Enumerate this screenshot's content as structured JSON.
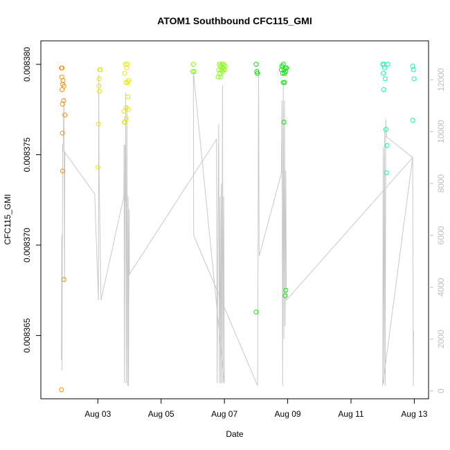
{
  "chart_data": {
    "type": "scatter",
    "title": "ATOM1 Southbound CFC115_GMI",
    "xlabel": "Date",
    "ylabel": "CFC115_GMI",
    "x_ticks": [
      "Aug 03",
      "Aug 05",
      "Aug 07",
      "Aug 09",
      "Aug 11",
      "Aug 13"
    ],
    "x_tick_days": [
      3,
      5,
      7,
      9,
      11,
      13
    ],
    "xlim_days": [
      1.2,
      13.45
    ],
    "y_left": {
      "ticks": [
        "0.008365",
        "0.008370",
        "0.008375",
        "0.008380"
      ],
      "tick_values": [
        0.008365,
        0.00837,
        0.008375,
        0.00838
      ],
      "lim": [
        0.0083615,
        0.0083813
      ]
    },
    "y_right": {
      "ticks": [
        "0",
        "2000",
        "4000",
        "6000",
        "8000",
        "10000",
        "12000"
      ],
      "tick_values": [
        0,
        2000,
        4000,
        6000,
        8000,
        10000,
        12000
      ],
      "lim": [
        -300,
        13500
      ]
    },
    "grid": false,
    "point_colors": [
      "#ff8c00",
      "#e6e600",
      "#80ff00",
      "#00e600",
      "#00ffb0"
    ],
    "line_color": "#c8c8c8",
    "line_series": [
      {
        "x": 1.85,
        "y": 1200
      },
      {
        "x": 1.86,
        "y": 6000
      },
      {
        "x": 1.87,
        "y": 800
      },
      {
        "x": 1.89,
        "y": 9500
      },
      {
        "x": 1.9,
        "y": 9200
      },
      {
        "x": 1.93,
        "y": 11300
      },
      {
        "x": 1.94,
        "y": 7500
      },
      {
        "x": 1.95,
        "y": 4200
      },
      {
        "x": 1.96,
        "y": 9200
      },
      {
        "x": 2.9,
        "y": 7600
      },
      {
        "x": 3.02,
        "y": 3500
      },
      {
        "x": 3.03,
        "y": 12200
      },
      {
        "x": 3.04,
        "y": 8500
      },
      {
        "x": 3.1,
        "y": 3500
      },
      {
        "x": 3.82,
        "y": 7500
      },
      {
        "x": 3.83,
        "y": 9500
      },
      {
        "x": 3.84,
        "y": 300
      },
      {
        "x": 3.86,
        "y": 9500
      },
      {
        "x": 3.87,
        "y": 7300
      },
      {
        "x": 3.88,
        "y": 11500
      },
      {
        "x": 3.9,
        "y": 300
      },
      {
        "x": 3.92,
        "y": 11000
      },
      {
        "x": 3.94,
        "y": 200
      },
      {
        "x": 3.96,
        "y": 7500
      },
      {
        "x": 3.97,
        "y": 200
      },
      {
        "x": 3.99,
        "y": 7000
      },
      {
        "x": 4.0,
        "y": 4500
      },
      {
        "x": 6.75,
        "y": 9700
      },
      {
        "x": 6.77,
        "y": 300
      },
      {
        "x": 6.8,
        "y": 7000
      },
      {
        "x": 6.82,
        "y": 10300
      },
      {
        "x": 6.84,
        "y": 300
      },
      {
        "x": 6.86,
        "y": 7500
      },
      {
        "x": 6.88,
        "y": 300
      },
      {
        "x": 6.9,
        "y": 8000
      },
      {
        "x": 6.92,
        "y": 300
      },
      {
        "x": 6.94,
        "y": 11800
      },
      {
        "x": 6.96,
        "y": 300
      },
      {
        "x": 6.98,
        "y": 7500
      },
      {
        "x": 7.0,
        "y": 300
      },
      {
        "x": 6.02,
        "y": 12300
      },
      {
        "x": 6.03,
        "y": 6000
      },
      {
        "x": 8.05,
        "y": 200
      },
      {
        "x": 8.08,
        "y": 12400
      },
      {
        "x": 8.1,
        "y": 5200
      },
      {
        "x": 8.8,
        "y": 8400
      },
      {
        "x": 8.82,
        "y": 11200
      },
      {
        "x": 8.84,
        "y": 200
      },
      {
        "x": 8.86,
        "y": 11800
      },
      {
        "x": 8.88,
        "y": 2000
      },
      {
        "x": 8.9,
        "y": 11200
      },
      {
        "x": 8.92,
        "y": 2500
      },
      {
        "x": 8.94,
        "y": 8500
      },
      {
        "x": 8.96,
        "y": 3500
      },
      {
        "x": 12.95,
        "y": 9000
      },
      {
        "x": 12.0,
        "y": 200
      },
      {
        "x": 12.02,
        "y": 9400
      },
      {
        "x": 12.04,
        "y": 300
      },
      {
        "x": 12.06,
        "y": 10000
      },
      {
        "x": 12.08,
        "y": 200
      },
      {
        "x": 12.1,
        "y": 10500
      },
      {
        "x": 12.12,
        "y": 9800
      },
      {
        "x": 12.95,
        "y": 9000
      },
      {
        "x": 12.97,
        "y": 200
      },
      {
        "x": 12.98,
        "y": 2300
      }
    ],
    "points": [
      {
        "x": 1.85,
        "y": 0.008362,
        "c": 0
      },
      {
        "x": 1.86,
        "y": 0.0083793,
        "c": 0
      },
      {
        "x": 1.87,
        "y": 0.0083786,
        "c": 0
      },
      {
        "x": 1.88,
        "y": 0.0083778,
        "c": 0
      },
      {
        "x": 1.9,
        "y": 0.0083791,
        "c": 0
      },
      {
        "x": 1.92,
        "y": 0.008378,
        "c": 0
      },
      {
        "x": 1.85,
        "y": 0.0083798,
        "c": 0
      },
      {
        "x": 1.87,
        "y": 0.0083798,
        "c": 0
      },
      {
        "x": 1.89,
        "y": 0.0083789,
        "c": 0
      },
      {
        "x": 1.93,
        "y": 0.0083788,
        "c": 0
      },
      {
        "x": 1.96,
        "y": 0.0083772,
        "c": 0
      },
      {
        "x": 1.88,
        "y": 0.0083762,
        "c": 0
      },
      {
        "x": 1.89,
        "y": 0.0083741,
        "c": 0
      },
      {
        "x": 1.93,
        "y": 0.0083681,
        "c": 0
      },
      {
        "x": 3.0,
        "y": 0.0083743,
        "c": 1
      },
      {
        "x": 3.02,
        "y": 0.0083767,
        "c": 1
      },
      {
        "x": 3.04,
        "y": 0.0083792,
        "c": 1
      },
      {
        "x": 3.06,
        "y": 0.0083797,
        "c": 1
      },
      {
        "x": 3.05,
        "y": 0.0083785,
        "c": 1
      },
      {
        "x": 3.08,
        "y": 0.0083797,
        "c": 1
      },
      {
        "x": 3.03,
        "y": 0.0083788,
        "c": 1
      },
      {
        "x": 3.82,
        "y": 0.0083774,
        "c": 1
      },
      {
        "x": 3.84,
        "y": 0.0083768,
        "c": 1
      },
      {
        "x": 3.85,
        "y": 0.0083795,
        "c": 1
      },
      {
        "x": 3.87,
        "y": 0.00838,
        "c": 1
      },
      {
        "x": 3.89,
        "y": 0.008379,
        "c": 1
      },
      {
        "x": 3.9,
        "y": 0.0083776,
        "c": 1
      },
      {
        "x": 3.91,
        "y": 0.0083798,
        "c": 1
      },
      {
        "x": 3.93,
        "y": 0.00838,
        "c": 1
      },
      {
        "x": 3.94,
        "y": 0.008379,
        "c": 1
      },
      {
        "x": 3.95,
        "y": 0.0083782,
        "c": 1
      },
      {
        "x": 3.9,
        "y": 0.008377,
        "c": 1
      },
      {
        "x": 3.96,
        "y": 0.0083775,
        "c": 1
      },
      {
        "x": 3.97,
        "y": 0.0083791,
        "c": 1
      },
      {
        "x": 3.86,
        "y": 0.0083768,
        "c": 1
      },
      {
        "x": 6.0,
        "y": 0.0083796,
        "c": 2
      },
      {
        "x": 6.02,
        "y": 0.00838,
        "c": 2
      },
      {
        "x": 6.04,
        "y": 0.0083796,
        "c": 2
      },
      {
        "x": 6.8,
        "y": 0.0083793,
        "c": 2
      },
      {
        "x": 6.82,
        "y": 0.0083797,
        "c": 2
      },
      {
        "x": 6.84,
        "y": 0.00838,
        "c": 2
      },
      {
        "x": 6.86,
        "y": 0.0083795,
        "c": 2
      },
      {
        "x": 6.88,
        "y": 0.0083799,
        "c": 2
      },
      {
        "x": 6.9,
        "y": 0.0083797,
        "c": 2
      },
      {
        "x": 6.92,
        "y": 0.00838,
        "c": 2
      },
      {
        "x": 6.94,
        "y": 0.0083796,
        "c": 2
      },
      {
        "x": 6.96,
        "y": 0.0083798,
        "c": 2
      },
      {
        "x": 6.98,
        "y": 0.00838,
        "c": 2
      },
      {
        "x": 7.0,
        "y": 0.0083797,
        "c": 2
      },
      {
        "x": 7.02,
        "y": 0.0083799,
        "c": 2
      },
      {
        "x": 6.88,
        "y": 0.0083793,
        "c": 2
      },
      {
        "x": 8.0,
        "y": 0.00838,
        "c": 3
      },
      {
        "x": 8.02,
        "y": 0.0083796,
        "c": 3
      },
      {
        "x": 8.04,
        "y": 0.0083795,
        "c": 3
      },
      {
        "x": 8.0,
        "y": 0.0083663,
        "c": 3
      },
      {
        "x": 8.8,
        "y": 0.0083797,
        "c": 3
      },
      {
        "x": 8.82,
        "y": 0.0083799,
        "c": 3
      },
      {
        "x": 8.84,
        "y": 0.0083795,
        "c": 3
      },
      {
        "x": 8.86,
        "y": 0.00838,
        "c": 3
      },
      {
        "x": 8.88,
        "y": 0.0083797,
        "c": 3
      },
      {
        "x": 8.9,
        "y": 0.008379,
        "c": 3
      },
      {
        "x": 8.92,
        "y": 0.0083798,
        "c": 3
      },
      {
        "x": 8.94,
        "y": 0.0083796,
        "c": 3
      },
      {
        "x": 8.96,
        "y": 0.0083798,
        "c": 3
      },
      {
        "x": 8.86,
        "y": 0.008379,
        "c": 3
      },
      {
        "x": 8.88,
        "y": 0.0083768,
        "c": 3
      },
      {
        "x": 8.94,
        "y": 0.0083675,
        "c": 3
      },
      {
        "x": 8.92,
        "y": 0.0083672,
        "c": 3
      },
      {
        "x": 8.9,
        "y": 0.0083795,
        "c": 3
      },
      {
        "x": 12.0,
        "y": 0.00838,
        "c": 4
      },
      {
        "x": 12.02,
        "y": 0.0083795,
        "c": 4
      },
      {
        "x": 12.04,
        "y": 0.00838,
        "c": 4
      },
      {
        "x": 12.06,
        "y": 0.0083798,
        "c": 4
      },
      {
        "x": 12.08,
        "y": 0.0083792,
        "c": 4
      },
      {
        "x": 12.03,
        "y": 0.0083786,
        "c": 4
      },
      {
        "x": 12.1,
        "y": 0.0083764,
        "c": 4
      },
      {
        "x": 12.12,
        "y": 0.008374,
        "c": 4
      },
      {
        "x": 12.14,
        "y": 0.0083755,
        "c": 4
      },
      {
        "x": 12.16,
        "y": 0.00838,
        "c": 4
      },
      {
        "x": 12.95,
        "y": 0.0083799,
        "c": 4
      },
      {
        "x": 12.97,
        "y": 0.0083797,
        "c": 4
      },
      {
        "x": 12.99,
        "y": 0.0083792,
        "c": 4
      },
      {
        "x": 12.95,
        "y": 0.0083769,
        "c": 4
      }
    ]
  }
}
